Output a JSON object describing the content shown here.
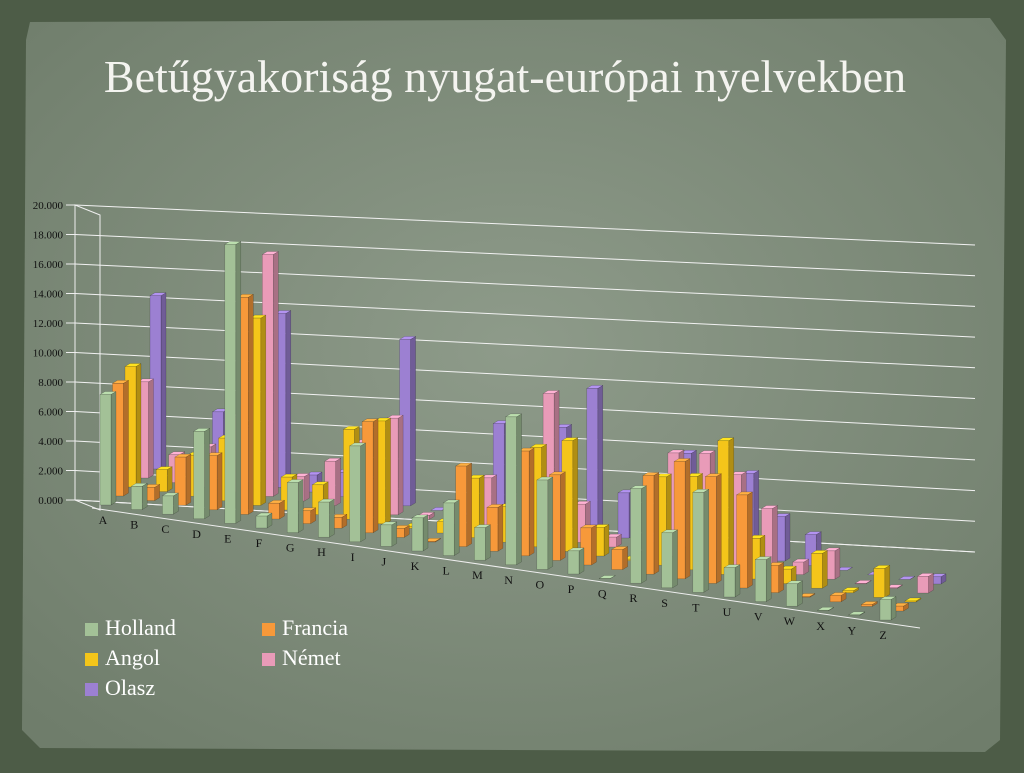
{
  "chart_data": {
    "type": "bar",
    "title": "Betűgyakoriság nyugat-európai nyelvekben",
    "categories": [
      "A",
      "B",
      "C",
      "D",
      "E",
      "F",
      "G",
      "H",
      "I",
      "J",
      "K",
      "L",
      "M",
      "N",
      "O",
      "P",
      "Q",
      "R",
      "S",
      "T",
      "U",
      "V",
      "W",
      "X",
      "Y",
      "Z"
    ],
    "series": [
      {
        "name": "Holland",
        "color": "#a3c197",
        "values": [
          7.49,
          1.58,
          1.24,
          5.93,
          18.91,
          0.81,
          3.4,
          2.38,
          6.5,
          1.46,
          2.25,
          3.57,
          2.21,
          10.03,
          6.06,
          1.57,
          0.01,
          6.41,
          3.73,
          6.79,
          1.99,
          2.85,
          1.52,
          0.04,
          0.04,
          1.39
        ]
      },
      {
        "name": "Francia",
        "color": "#f7993a",
        "values": [
          7.64,
          0.9,
          3.26,
          3.67,
          14.72,
          1.07,
          0.87,
          0.74,
          7.53,
          0.61,
          0.05,
          5.46,
          2.97,
          7.1,
          5.8,
          2.52,
          1.36,
          6.69,
          7.95,
          7.24,
          6.31,
          1.84,
          0.05,
          0.43,
          0.13,
          0.33
        ]
      },
      {
        "name": "Angol",
        "color": "#f4c51a",
        "values": [
          8.17,
          1.49,
          2.78,
          4.25,
          12.7,
          2.23,
          2.02,
          6.09,
          6.97,
          0.15,
          0.77,
          4.03,
          2.41,
          6.75,
          7.51,
          1.93,
          0.1,
          5.99,
          6.33,
          9.06,
          2.76,
          0.98,
          2.36,
          0.15,
          1.97,
          0.07
        ]
      },
      {
        "name": "Német",
        "color": "#e99bb8",
        "values": [
          6.52,
          1.89,
          2.73,
          5.08,
          16.4,
          1.66,
          3.01,
          4.58,
          6.55,
          0.27,
          1.42,
          3.44,
          2.53,
          9.78,
          2.59,
          0.67,
          0.02,
          7.0,
          7.27,
          6.15,
          4.17,
          0.85,
          1.92,
          0.03,
          0.04,
          1.13
        ]
      },
      {
        "name": "Olasz",
        "color": "#9c80d2",
        "values": [
          11.75,
          0.93,
          4.5,
          3.74,
          11.79,
          1.15,
          1.64,
          1.54,
          11.28,
          0,
          0,
          6.51,
          2.51,
          6.88,
          9.83,
          3.06,
          0.51,
          6.37,
          4.98,
          5.62,
          3.01,
          2.1,
          0,
          0,
          0,
          0.49
        ]
      }
    ],
    "ylim": [
      0,
      20
    ],
    "yticks": [
      {
        "value": 0,
        "label": "0.000"
      },
      {
        "value": 2,
        "label": "2.000"
      },
      {
        "value": 4,
        "label": "4.000"
      },
      {
        "value": 6,
        "label": "6.000"
      },
      {
        "value": 8,
        "label": "8.000"
      },
      {
        "value": 10,
        "label": "10.000"
      },
      {
        "value": 12,
        "label": "12.000"
      },
      {
        "value": 14,
        "label": "14.000"
      },
      {
        "value": 16,
        "label": "16.000"
      },
      {
        "value": 18,
        "label": "18.000"
      },
      {
        "value": 20,
        "label": "20.000"
      }
    ],
    "grid": true
  }
}
